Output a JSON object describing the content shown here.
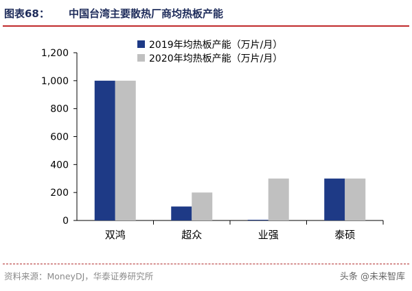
{
  "header": {
    "figure_no": "图表68：",
    "title": "中国台湾主要散热厂商均热板产能"
  },
  "footer": {
    "source": "资料来源：MoneyDJ，华泰证券研究所",
    "watermark": "头条 @未来智库"
  },
  "colors": {
    "series_2019": "#1e3a86",
    "series_2020": "#c0c0c0",
    "title": "#1d2b5a",
    "rule": "#c0282a"
  },
  "chart_data": {
    "type": "bar",
    "title": "",
    "xlabel": "",
    "ylabel": "",
    "categories": [
      "双鸿",
      "超众",
      "业强",
      "泰硕"
    ],
    "series": [
      {
        "name": "2019年均热板产能（万片/月）",
        "values": [
          1000,
          100,
          5,
          300
        ]
      },
      {
        "name": "2020年均热板产能（万片/月）",
        "values": [
          1000,
          200,
          300,
          300
        ]
      }
    ],
    "ylim": [
      0,
      1200
    ],
    "yticks": [
      0,
      200,
      400,
      600,
      800,
      1000,
      1200
    ],
    "ytick_labels": [
      "0",
      "200",
      "400",
      "600",
      "800",
      "1,000",
      "1,200"
    ],
    "grid": false,
    "legend_position": "top-center"
  }
}
